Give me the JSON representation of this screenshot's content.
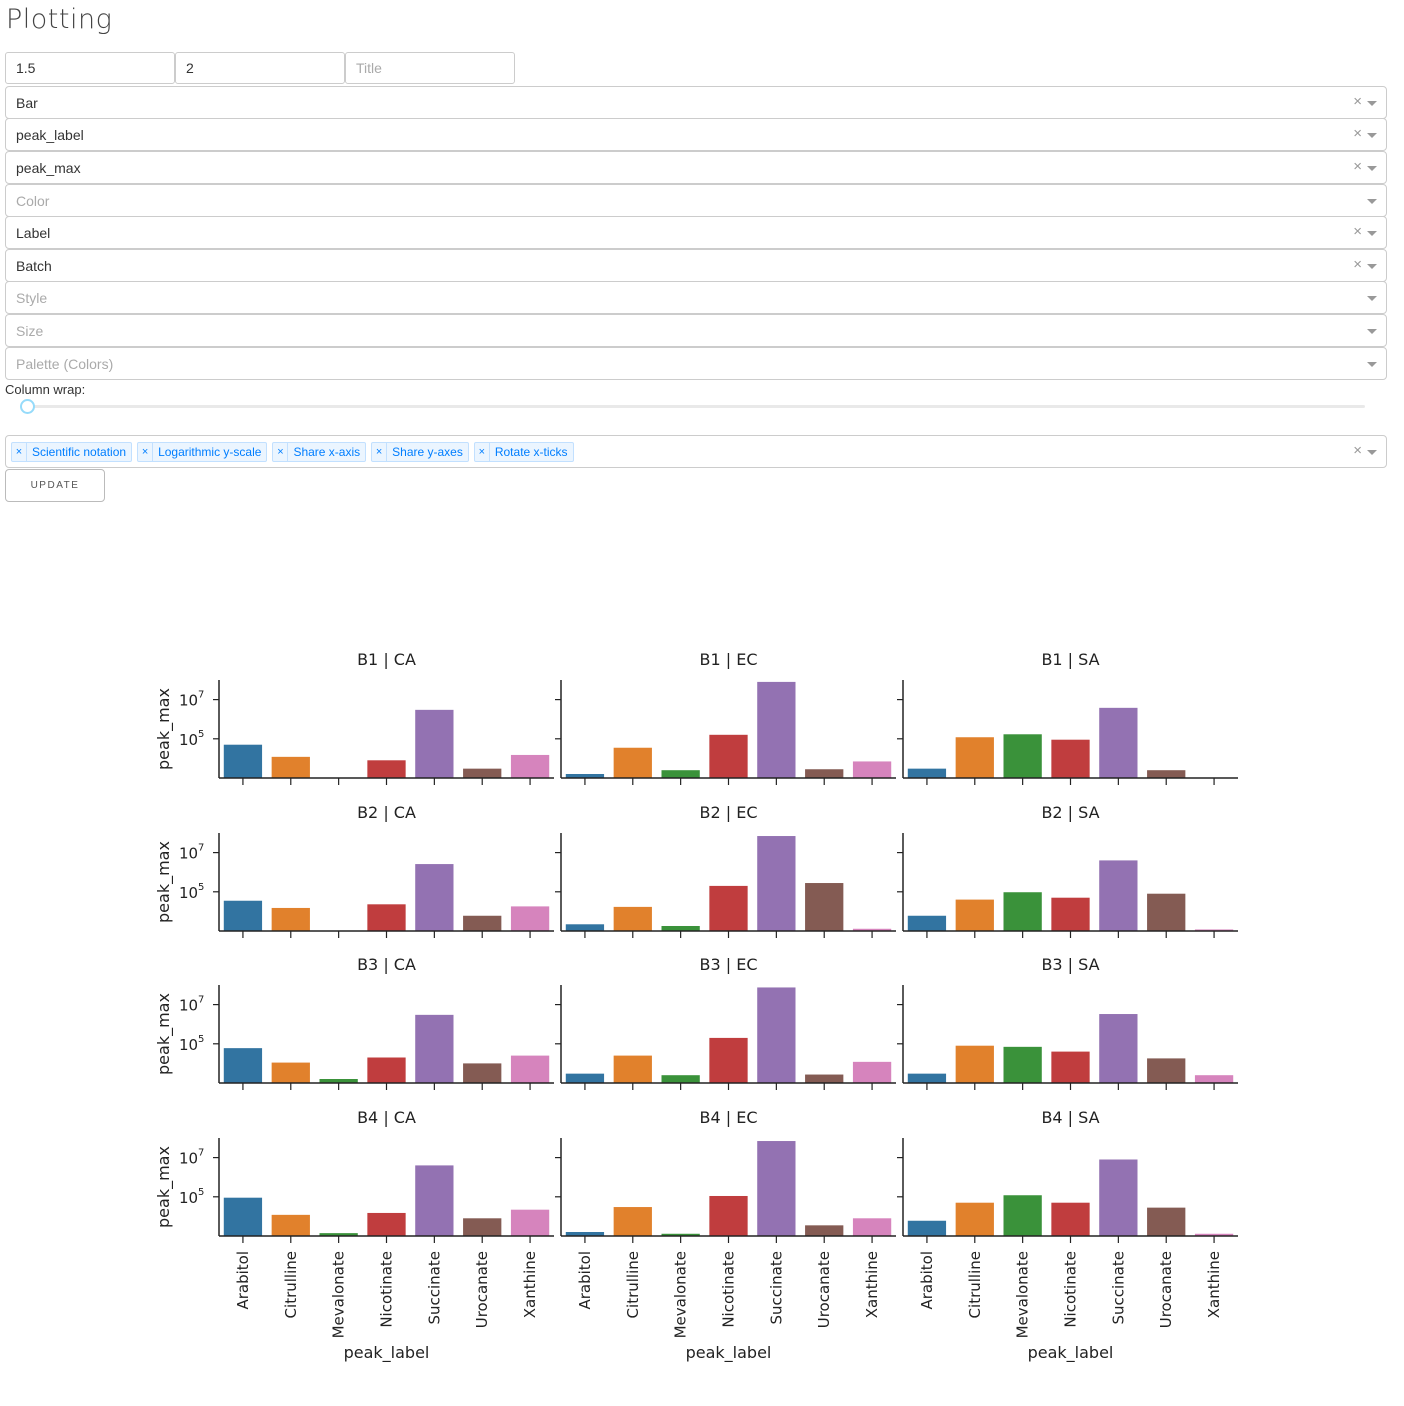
{
  "page": {
    "title": "Plotting"
  },
  "inputs": {
    "height": {
      "value": "1.5"
    },
    "aspect": {
      "value": "2"
    },
    "title": {
      "value": "",
      "placeholder": "Title"
    }
  },
  "dropdowns": [
    {
      "name": "plot-type",
      "value": "Bar",
      "placeholder": "",
      "clearable": true
    },
    {
      "name": "x",
      "value": "peak_label",
      "placeholder": "",
      "clearable": true
    },
    {
      "name": "y",
      "value": "peak_max",
      "placeholder": "",
      "clearable": true
    },
    {
      "name": "color",
      "value": "",
      "placeholder": "Color",
      "clearable": false
    },
    {
      "name": "col",
      "value": "Label",
      "placeholder": "",
      "clearable": true
    },
    {
      "name": "row",
      "value": "Batch",
      "placeholder": "",
      "clearable": true
    },
    {
      "name": "style",
      "value": "",
      "placeholder": "Style",
      "clearable": false
    },
    {
      "name": "size",
      "value": "",
      "placeholder": "Size",
      "clearable": false
    },
    {
      "name": "palette",
      "value": "",
      "placeholder": "Palette (Colors)",
      "clearable": false
    }
  ],
  "column_wrap": {
    "label": "Column wrap:",
    "value": 0
  },
  "options": {
    "tags": [
      "Scientific notation",
      "Logarithmic y-scale",
      "Share x-axis",
      "Share y-axes",
      "Rotate x-ticks"
    ]
  },
  "update_button": {
    "label": "UPDATE"
  },
  "chart_data": {
    "type": "bar",
    "yscale": "log",
    "ylabel": "peak_max",
    "xlabel": "peak_label",
    "categories": [
      "Arabitol",
      "Citrulline",
      "Mevalonate",
      "Nicotinate",
      "Succinate",
      "Urocanate",
      "Xanthine"
    ],
    "colors": [
      "#3274a1",
      "#e1812c",
      "#3a923a",
      "#c03d3e",
      "#9372b2",
      "#845b53",
      "#d684bd"
    ],
    "yticks": [
      {
        "value": 100000,
        "base": "10",
        "exp": "5"
      },
      {
        "value": 10000000,
        "base": "10",
        "exp": "7"
      }
    ],
    "ylim": [
      1000,
      100000000
    ],
    "panels": [
      {
        "title": "B1 | CA",
        "values": [
          50000,
          12000,
          null,
          8000,
          3000000,
          3000,
          15000
        ]
      },
      {
        "title": "B1 | EC",
        "values": [
          1600,
          35000,
          2500,
          160000,
          80000000,
          2800,
          7000
        ]
      },
      {
        "title": "B1 | SA",
        "values": [
          3000,
          120000,
          170000,
          90000,
          3800000,
          2500,
          null
        ]
      },
      {
        "title": "B2 | CA",
        "values": [
          35000,
          15000,
          null,
          23000,
          2600000,
          6000,
          18000
        ]
      },
      {
        "title": "B2 | EC",
        "values": [
          2200,
          17000,
          1800,
          200000,
          70000000,
          280000,
          1300
        ]
      },
      {
        "title": "B2 | SA",
        "values": [
          6000,
          40000,
          95000,
          50000,
          4000000,
          80000,
          1200
        ]
      },
      {
        "title": "B3 | CA",
        "values": [
          60000,
          11000,
          1600,
          20000,
          3000000,
          10000,
          25000
        ]
      },
      {
        "title": "B3 | EC",
        "values": [
          3000,
          25000,
          2500,
          200000,
          75000000,
          2700,
          12000
        ]
      },
      {
        "title": "B3 | SA",
        "values": [
          3000,
          80000,
          70000,
          40000,
          3300000,
          18000,
          2500
        ]
      },
      {
        "title": "B4 | CA",
        "values": [
          90000,
          12000,
          1400,
          15000,
          4000000,
          8000,
          22000
        ]
      },
      {
        "title": "B4 | EC",
        "values": [
          1600,
          30000,
          1300,
          110000,
          70000000,
          3500,
          8000
        ]
      },
      {
        "title": "B4 | SA",
        "values": [
          6000,
          50000,
          120000,
          50000,
          8000000,
          28000,
          1300
        ]
      }
    ]
  }
}
